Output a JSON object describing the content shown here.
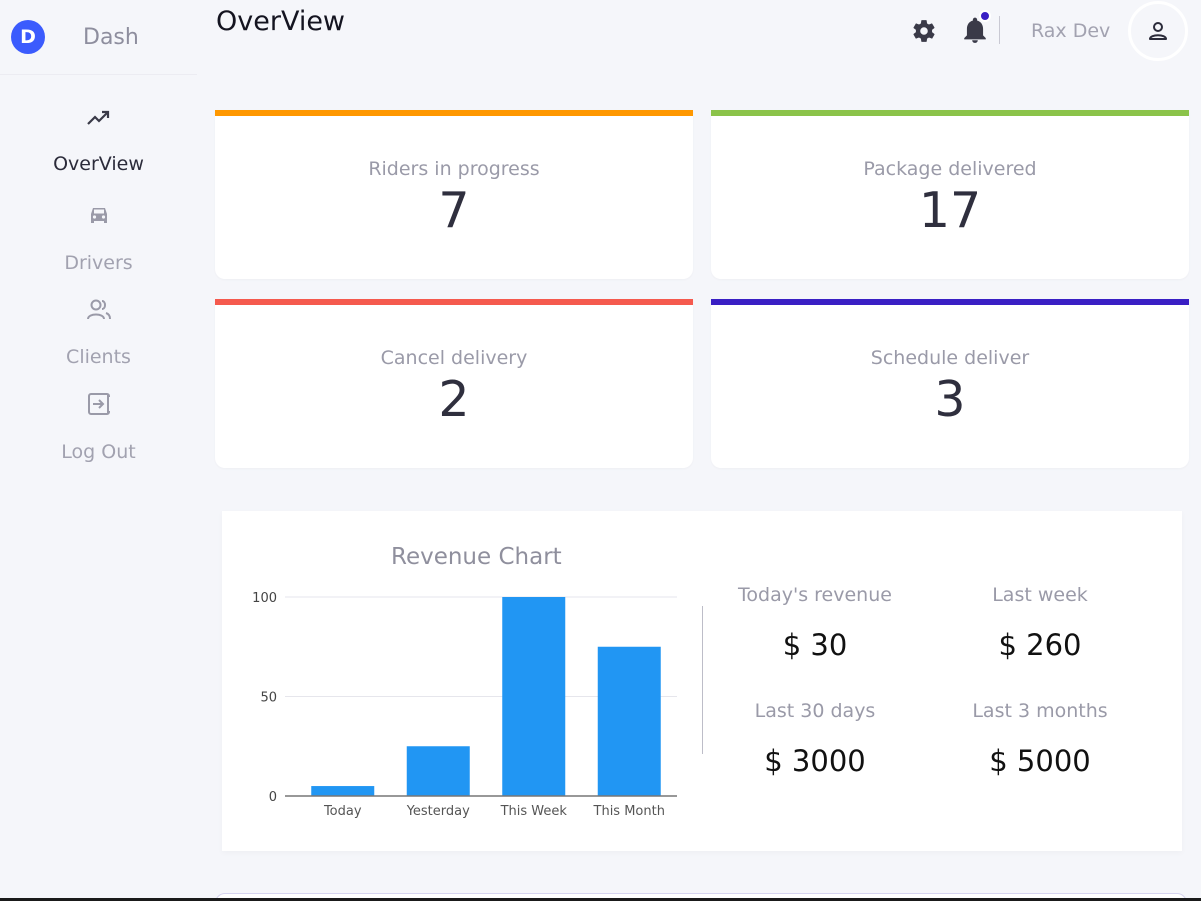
{
  "brand": {
    "logo_letter": "D",
    "name": "Dash"
  },
  "sidebar": {
    "items": [
      {
        "label": "OverView",
        "icon": "trending-up-icon"
      },
      {
        "label": "Drivers",
        "icon": "car-icon"
      },
      {
        "label": "Clients",
        "icon": "users-icon"
      },
      {
        "label": "Log Out",
        "icon": "logout-icon"
      }
    ]
  },
  "header": {
    "title": "OverView",
    "user_name": "Rax Dev"
  },
  "stats": [
    {
      "label": "Riders in progress",
      "value": "7",
      "color": "#ff9800"
    },
    {
      "label": "Package delivered",
      "value": "17",
      "color": "#8bc34a"
    },
    {
      "label": "Cancel delivery",
      "value": "2",
      "color": "#f55a4e"
    },
    {
      "label": "Schedule deliver",
      "value": "3",
      "color": "#3a1fc4"
    }
  ],
  "revenue": {
    "today_label": "Today's revenue",
    "today_value": "$ 30",
    "week_label": "Last week",
    "week_value": "$ 260",
    "month_label": "Last 30 days",
    "month_value": "$ 3000",
    "quarter_label": "Last 3 months",
    "quarter_value": "$ 5000"
  },
  "chart_data": {
    "type": "bar",
    "title": "Revenue Chart",
    "categories": [
      "Today",
      "Yesterday",
      "This Week",
      "This Month"
    ],
    "values": [
      5,
      25,
      100,
      75
    ],
    "y_ticks": [
      "0",
      "50",
      "100"
    ],
    "ylim": [
      0,
      100
    ],
    "xlabel": "",
    "ylabel": "",
    "bar_color": "#2196f3",
    "grid": true
  }
}
